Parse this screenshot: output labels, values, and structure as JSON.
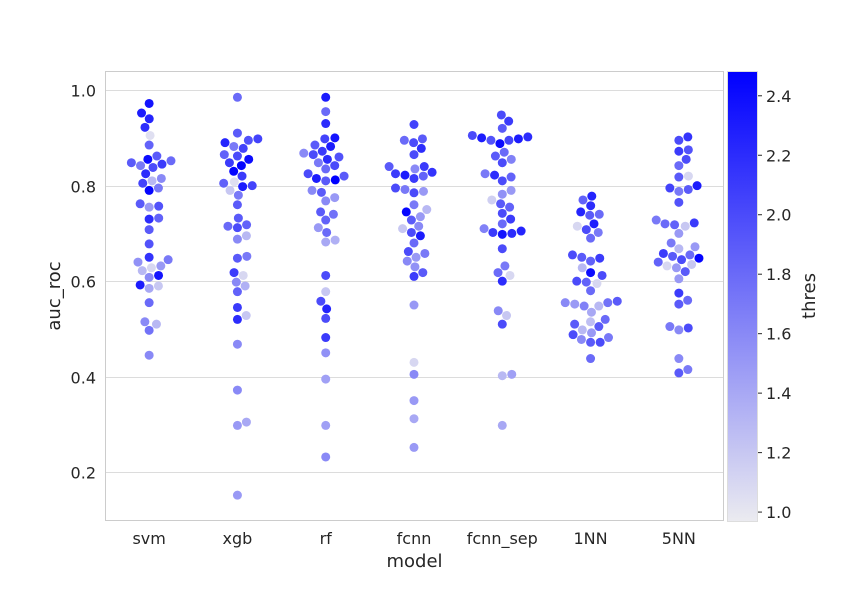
{
  "chart_data": {
    "type": "scatter",
    "xlabel": "model",
    "ylabel": "auc_roc",
    "colorbar_label": "thres",
    "ylim": [
      0.1,
      1.04
    ],
    "yticks": [
      0.2,
      0.4,
      0.6,
      0.8,
      1.0
    ],
    "ytick_labels": [
      "0.2",
      "0.4",
      "0.6",
      "0.8",
      "1.0"
    ],
    "color_range": [
      0.97,
      2.48
    ],
    "colorbar_ticks": [
      1.0,
      1.2,
      1.4,
      1.6,
      1.8,
      2.0,
      2.2,
      2.4
    ],
    "colorbar_tick_labels": [
      "1.0",
      "1.2",
      "1.4",
      "1.6",
      "1.8",
      "2.0",
      "2.2",
      "2.4"
    ],
    "color_low": "#ebebf0",
    "color_high": "#0000ff",
    "grid": true,
    "categories": [
      "svm",
      "xgb",
      "rf",
      "fcnn",
      "fcnn_sep",
      "1NN",
      "5NN"
    ],
    "series": [
      {
        "category": "svm",
        "points": [
          [
            0.972,
            2.35
          ],
          [
            0.952,
            2.3
          ],
          [
            0.94,
            2.25
          ],
          [
            0.922,
            2.2
          ],
          [
            0.905,
            1.05
          ],
          [
            0.885,
            1.85
          ],
          [
            0.862,
            1.9
          ],
          [
            0.855,
            2.4
          ],
          [
            0.852,
            1.8
          ],
          [
            0.848,
            1.9
          ],
          [
            0.845,
            2.1
          ],
          [
            0.842,
            1.7
          ],
          [
            0.838,
            2.0
          ],
          [
            0.825,
            2.2
          ],
          [
            0.815,
            1.6
          ],
          [
            0.81,
            1.3
          ],
          [
            0.805,
            2.05
          ],
          [
            0.79,
            2.45
          ],
          [
            0.795,
            1.7
          ],
          [
            0.762,
            1.9
          ],
          [
            0.757,
            1.95
          ],
          [
            0.755,
            1.5
          ],
          [
            0.73,
            2.2
          ],
          [
            0.732,
            1.85
          ],
          [
            0.708,
            1.9
          ],
          [
            0.678,
            1.95
          ],
          [
            0.65,
            2.15
          ],
          [
            0.645,
            1.7
          ],
          [
            0.64,
            1.55
          ],
          [
            0.632,
            1.5
          ],
          [
            0.628,
            1.1
          ],
          [
            0.622,
            1.3
          ],
          [
            0.612,
            2.35
          ],
          [
            0.608,
            1.6
          ],
          [
            0.592,
            2.3
          ],
          [
            0.59,
            1.2
          ],
          [
            0.585,
            1.4
          ],
          [
            0.555,
            1.8
          ],
          [
            0.515,
            1.6
          ],
          [
            0.51,
            1.3
          ],
          [
            0.497,
            1.75
          ],
          [
            0.445,
            1.6
          ]
        ]
      },
      {
        "category": "xgb",
        "points": [
          [
            0.985,
            1.8
          ],
          [
            0.91,
            1.9
          ],
          [
            0.898,
            2.05
          ],
          [
            0.895,
            1.95
          ],
          [
            0.89,
            2.25
          ],
          [
            0.882,
            1.7
          ],
          [
            0.878,
            2.05
          ],
          [
            0.865,
            1.85
          ],
          [
            0.862,
            2.0
          ],
          [
            0.855,
            2.4
          ],
          [
            0.848,
            2.1
          ],
          [
            0.842,
            2.45
          ],
          [
            0.83,
            2.45
          ],
          [
            0.82,
            2.1
          ],
          [
            0.808,
            1.05
          ],
          [
            0.805,
            1.85
          ],
          [
            0.8,
            2.05
          ],
          [
            0.798,
            2.3
          ],
          [
            0.79,
            1.2
          ],
          [
            0.78,
            1.7
          ],
          [
            0.76,
            1.9
          ],
          [
            0.732,
            1.9
          ],
          [
            0.718,
            1.85
          ],
          [
            0.715,
            1.8
          ],
          [
            0.712,
            2.0
          ],
          [
            0.695,
            1.3
          ],
          [
            0.688,
            1.6
          ],
          [
            0.652,
            1.7
          ],
          [
            0.648,
            1.9
          ],
          [
            0.618,
            2.1
          ],
          [
            0.612,
            1.1
          ],
          [
            0.598,
            1.6
          ],
          [
            0.59,
            1.35
          ],
          [
            0.578,
            1.85
          ],
          [
            0.545,
            2.1
          ],
          [
            0.528,
            1.2
          ],
          [
            0.52,
            2.2
          ],
          [
            0.468,
            1.6
          ],
          [
            0.372,
            1.6
          ],
          [
            0.305,
            1.4
          ],
          [
            0.298,
            1.5
          ],
          [
            0.152,
            1.5
          ]
        ]
      },
      {
        "category": "rf",
        "points": [
          [
            0.985,
            2.3
          ],
          [
            0.955,
            1.8
          ],
          [
            0.93,
            2.2
          ],
          [
            0.9,
            2.35
          ],
          [
            0.898,
            2.05
          ],
          [
            0.885,
            1.9
          ],
          [
            0.882,
            2.3
          ],
          [
            0.872,
            2.1
          ],
          [
            0.868,
            1.6
          ],
          [
            0.865,
            2.0
          ],
          [
            0.86,
            1.95
          ],
          [
            0.855,
            2.2
          ],
          [
            0.848,
            1.7
          ],
          [
            0.842,
            2.0
          ],
          [
            0.835,
            1.8
          ],
          [
            0.825,
            2.0
          ],
          [
            0.82,
            1.9
          ],
          [
            0.815,
            2.3
          ],
          [
            0.812,
            2.5
          ],
          [
            0.81,
            1.9
          ],
          [
            0.79,
            1.6
          ],
          [
            0.786,
            1.9
          ],
          [
            0.775,
            1.5
          ],
          [
            0.768,
            1.6
          ],
          [
            0.745,
            1.9
          ],
          [
            0.74,
            1.75
          ],
          [
            0.728,
            1.85
          ],
          [
            0.712,
            1.5
          ],
          [
            0.702,
            1.8
          ],
          [
            0.686,
            1.35
          ],
          [
            0.682,
            1.4
          ],
          [
            0.612,
            2.0
          ],
          [
            0.578,
            1.2
          ],
          [
            0.558,
            2.0
          ],
          [
            0.542,
            2.25
          ],
          [
            0.522,
            2.0
          ],
          [
            0.482,
            2.1
          ],
          [
            0.45,
            1.55
          ],
          [
            0.395,
            1.45
          ],
          [
            0.298,
            1.45
          ],
          [
            0.232,
            1.6
          ]
        ]
      },
      {
        "category": "fcnn",
        "points": [
          [
            0.928,
            2.05
          ],
          [
            0.898,
            1.9
          ],
          [
            0.895,
            1.8
          ],
          [
            0.89,
            2.0
          ],
          [
            0.878,
            2.2
          ],
          [
            0.865,
            2.0
          ],
          [
            0.84,
            2.1
          ],
          [
            0.84,
            1.9
          ],
          [
            0.835,
            1.6
          ],
          [
            0.828,
            2.15
          ],
          [
            0.825,
            2.1
          ],
          [
            0.822,
            2.3
          ],
          [
            0.82,
            1.85
          ],
          [
            0.815,
            2.1
          ],
          [
            0.795,
            2.0
          ],
          [
            0.792,
            1.7
          ],
          [
            0.788,
            1.5
          ],
          [
            0.785,
            2.0
          ],
          [
            0.76,
            1.7
          ],
          [
            0.75,
            1.3
          ],
          [
            0.745,
            2.45
          ],
          [
            0.735,
            1.5
          ],
          [
            0.728,
            1.9
          ],
          [
            0.715,
            1.6
          ],
          [
            0.71,
            1.2
          ],
          [
            0.702,
            2.0
          ],
          [
            0.695,
            2.3
          ],
          [
            0.68,
            1.8
          ],
          [
            0.662,
            2.0
          ],
          [
            0.658,
            1.7
          ],
          [
            0.65,
            1.5
          ],
          [
            0.642,
            1.6
          ],
          [
            0.63,
            1.55
          ],
          [
            0.618,
            1.9
          ],
          [
            0.61,
            2.1
          ],
          [
            0.55,
            1.5
          ],
          [
            0.43,
            1.1
          ],
          [
            0.405,
            1.6
          ],
          [
            0.35,
            1.5
          ],
          [
            0.312,
            1.4
          ],
          [
            0.252,
            1.5
          ]
        ]
      },
      {
        "category": "fcnn_sep",
        "points": [
          [
            0.948,
            2.0
          ],
          [
            0.935,
            2.1
          ],
          [
            0.92,
            1.9
          ],
          [
            0.905,
            2.0
          ],
          [
            0.902,
            2.2
          ],
          [
            0.9,
            2.3
          ],
          [
            0.898,
            2.3
          ],
          [
            0.895,
            2.05
          ],
          [
            0.895,
            1.95
          ],
          [
            0.888,
            2.4
          ],
          [
            0.87,
            1.8
          ],
          [
            0.862,
            1.9
          ],
          [
            0.855,
            1.65
          ],
          [
            0.848,
            2.0
          ],
          [
            0.825,
            1.7
          ],
          [
            0.822,
            2.2
          ],
          [
            0.818,
            1.85
          ],
          [
            0.81,
            2.0
          ],
          [
            0.79,
            1.5
          ],
          [
            0.782,
            1.55
          ],
          [
            0.77,
            1.15
          ],
          [
            0.762,
            1.9
          ],
          [
            0.755,
            1.85
          ],
          [
            0.742,
            2.0
          ],
          [
            0.73,
            2.1
          ],
          [
            0.72,
            1.8
          ],
          [
            0.71,
            1.65
          ],
          [
            0.705,
            2.25
          ],
          [
            0.702,
            2.1
          ],
          [
            0.7,
            2.2
          ],
          [
            0.698,
            2.35
          ],
          [
            0.668,
            2.0
          ],
          [
            0.632,
            1.7
          ],
          [
            0.618,
            1.8
          ],
          [
            0.612,
            1.1
          ],
          [
            0.6,
            2.2
          ],
          [
            0.538,
            1.6
          ],
          [
            0.528,
            1.2
          ],
          [
            0.51,
            2.0
          ],
          [
            0.405,
            1.45
          ],
          [
            0.402,
            1.3
          ],
          [
            0.298,
            1.4
          ]
        ]
      },
      {
        "category": "1NN",
        "points": [
          [
            0.778,
            2.25
          ],
          [
            0.77,
            1.85
          ],
          [
            0.758,
            2.2
          ],
          [
            0.745,
            2.25
          ],
          [
            0.74,
            1.8
          ],
          [
            0.738,
            1.9
          ],
          [
            0.72,
            2.3
          ],
          [
            0.715,
            1.1
          ],
          [
            0.708,
            2.0
          ],
          [
            0.702,
            1.7
          ],
          [
            0.69,
            1.8
          ],
          [
            0.655,
            2.0
          ],
          [
            0.65,
            1.9
          ],
          [
            0.648,
            2.1
          ],
          [
            0.642,
            1.85
          ],
          [
            0.628,
            1.3
          ],
          [
            0.618,
            2.4
          ],
          [
            0.612,
            2.0
          ],
          [
            0.6,
            2.0
          ],
          [
            0.598,
            1.85
          ],
          [
            0.595,
            1.1
          ],
          [
            0.58,
            1.8
          ],
          [
            0.558,
            1.9
          ],
          [
            0.555,
            1.75
          ],
          [
            0.555,
            1.6
          ],
          [
            0.552,
            1.5
          ],
          [
            0.548,
            1.65
          ],
          [
            0.548,
            1.3
          ],
          [
            0.535,
            1.4
          ],
          [
            0.52,
            1.8
          ],
          [
            0.515,
            1.25
          ],
          [
            0.51,
            1.9
          ],
          [
            0.505,
            1.9
          ],
          [
            0.498,
            1.3
          ],
          [
            0.492,
            1.5
          ],
          [
            0.488,
            2.0
          ],
          [
            0.482,
            1.7
          ],
          [
            0.478,
            1.6
          ],
          [
            0.472,
            1.9
          ],
          [
            0.472,
            2.0
          ],
          [
            0.438,
            1.8
          ]
        ]
      },
      {
        "category": "5NN",
        "points": [
          [
            0.902,
            2.15
          ],
          [
            0.895,
            2.0
          ],
          [
            0.875,
            1.95
          ],
          [
            0.872,
            2.1
          ],
          [
            0.855,
            2.0
          ],
          [
            0.842,
            1.8
          ],
          [
            0.82,
            1.1
          ],
          [
            0.818,
            1.9
          ],
          [
            0.8,
            2.3
          ],
          [
            0.795,
            2.05
          ],
          [
            0.792,
            1.9
          ],
          [
            0.788,
            1.7
          ],
          [
            0.765,
            1.95
          ],
          [
            0.728,
            1.7
          ],
          [
            0.72,
            1.8
          ],
          [
            0.722,
            2.1
          ],
          [
            0.718,
            1.85
          ],
          [
            0.715,
            1.2
          ],
          [
            0.7,
            1.5
          ],
          [
            0.68,
            1.7
          ],
          [
            0.672,
            1.5
          ],
          [
            0.668,
            1.3
          ],
          [
            0.658,
            2.1
          ],
          [
            0.655,
            1.8
          ],
          [
            0.652,
            1.9
          ],
          [
            0.648,
            2.45
          ],
          [
            0.645,
            2.0
          ],
          [
            0.64,
            1.85
          ],
          [
            0.635,
            1.2
          ],
          [
            0.632,
            1.1
          ],
          [
            0.628,
            1.5
          ],
          [
            0.62,
            1.9
          ],
          [
            0.605,
            1.5
          ],
          [
            0.575,
            2.1
          ],
          [
            0.56,
            1.8
          ],
          [
            0.552,
            1.9
          ],
          [
            0.505,
            1.7
          ],
          [
            0.502,
            2.0
          ],
          [
            0.498,
            1.6
          ],
          [
            0.438,
            1.6
          ],
          [
            0.415,
            1.7
          ],
          [
            0.408,
            1.9
          ]
        ]
      }
    ]
  }
}
